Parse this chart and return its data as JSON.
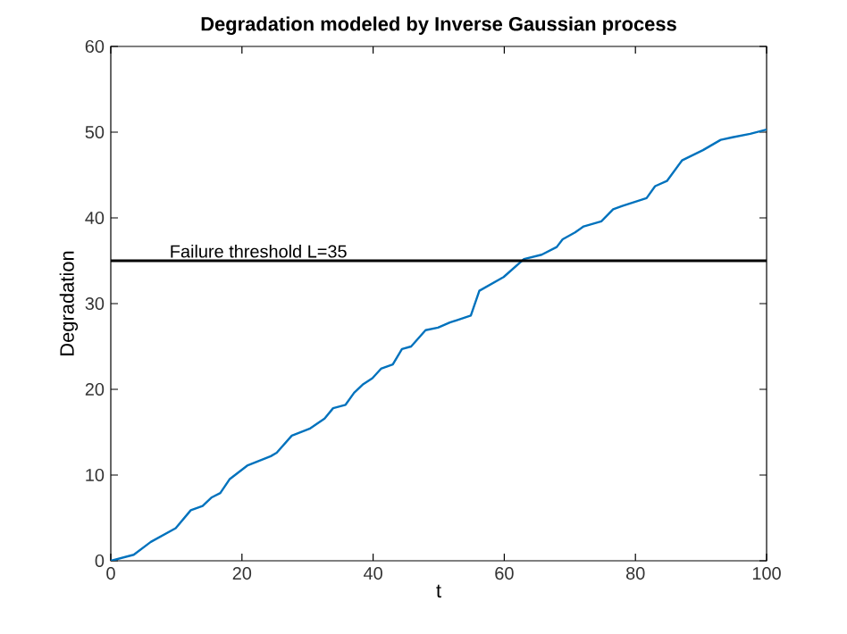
{
  "chart_data": {
    "type": "line",
    "title": "Degradation modeled by Inverse Gaussian process",
    "xlabel": "t",
    "ylabel": "Degradation",
    "xlim": [
      0,
      100
    ],
    "ylim": [
      0,
      60
    ],
    "xticks": [
      0,
      20,
      40,
      60,
      80,
      100
    ],
    "yticks": [
      0,
      10,
      20,
      30,
      40,
      50,
      60
    ],
    "marker": "none",
    "line_style": "solid",
    "series": [
      {
        "color": "#0072bd",
        "x": [
          0,
          3.5,
          6.1,
          9.9,
          12.2,
          14,
          15.4,
          16.7,
          18.1,
          20.8,
          24.4,
          25.3,
          27.6,
          30.3,
          32.6,
          33.9,
          35.8,
          37.1,
          38.5,
          39.9,
          41.2,
          43,
          44.4,
          45.8,
          48,
          49.9,
          51.7,
          54.9,
          56.2,
          59.9,
          63,
          65.7,
          68,
          68.9,
          70.8,
          72.1,
          74.8,
          76.6,
          78,
          81.7,
          83,
          84.8,
          87.1,
          90.3,
          93,
          94.8,
          97.5,
          100
        ],
        "values": [
          0,
          0.7,
          2.2,
          3.8,
          5.9,
          6.4,
          7.4,
          7.9,
          9.5,
          11.1,
          12.2,
          12.6,
          14.6,
          15.4,
          16.6,
          17.8,
          18.2,
          19.6,
          20.6,
          21.3,
          22.4,
          22.9,
          24.7,
          25,
          26.9,
          27.2,
          27.8,
          28.6,
          31.5,
          33.1,
          35.2,
          35.7,
          36.6,
          37.5,
          38.3,
          39,
          39.6,
          41,
          41.4,
          42.3,
          43.7,
          44.3,
          46.7,
          47.9,
          49.1,
          49.4,
          49.8,
          50.3
        ]
      }
    ],
    "ref_lines": [
      {
        "axis": "y",
        "value": 35,
        "label": "Failure threshold L=35",
        "color": "#000000",
        "line_style": "solid"
      }
    ]
  }
}
